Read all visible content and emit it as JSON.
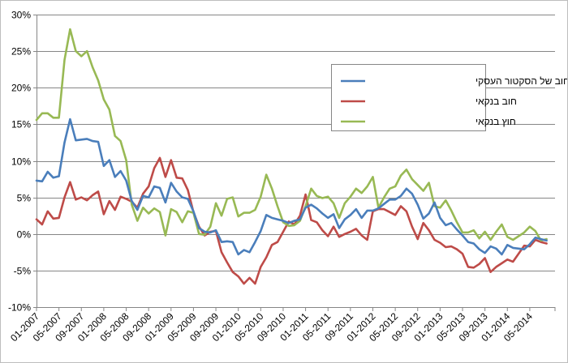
{
  "chart_data": {
    "type": "line",
    "title": "",
    "xlabel": "",
    "ylabel": "",
    "ylim": [
      -0.1,
      0.3
    ],
    "yticks": [
      -0.1,
      -0.05,
      0,
      0.05,
      0.1,
      0.15,
      0.2,
      0.25,
      0.3
    ],
    "ytick_labels": [
      "-10%",
      "-5%",
      "0%",
      "5%",
      "10%",
      "15%",
      "20%",
      "25%",
      "30%"
    ],
    "x_start": "01-2007",
    "x_labels": [
      "01-2007",
      "05-2007",
      "09-2007",
      "01-2008",
      "05-2008",
      "09-2008",
      "01-2009",
      "05-2009",
      "09-2009",
      "01-2010",
      "05-2010",
      "09-2010",
      "01-2011",
      "05-2011",
      "09-2011",
      "01-2012",
      "05-2012",
      "09-2012",
      "01-2013",
      "05-2013",
      "09-2013",
      "01-2014",
      "05-2014"
    ],
    "grid": "horizontal",
    "legend_position": "right",
    "colors": {
      "series1": "#4a7ebb",
      "series2": "#be4b48",
      "series3": "#98b954",
      "grid": "#868686"
    },
    "series": [
      {
        "name": "סך החוב של הסקטור העסקי",
        "values": [
          0.073,
          0.072,
          0.085,
          0.077,
          0.079,
          0.125,
          0.157,
          0.128,
          0.129,
          0.13,
          0.127,
          0.126,
          0.093,
          0.101,
          0.078,
          0.086,
          0.073,
          0.045,
          0.033,
          0.052,
          0.05,
          0.065,
          0.063,
          0.043,
          0.07,
          0.058,
          0.05,
          0.048,
          0.031,
          0.008,
          0.003,
          0.002,
          0.005,
          -0.011,
          -0.01,
          -0.011,
          -0.028,
          -0.022,
          -0.025,
          -0.011,
          0.004,
          0.026,
          0.022,
          0.02,
          0.018,
          0.015,
          0.018,
          0.02,
          0.036,
          0.04,
          0.035,
          0.028,
          0.022,
          0.027,
          0.008,
          0.02,
          0.026,
          0.034,
          0.022,
          0.032,
          0.032,
          0.035,
          0.041,
          0.047,
          0.047,
          0.052,
          0.062,
          0.055,
          0.04,
          0.021,
          0.028,
          0.043,
          0.022,
          0.012,
          0.015,
          0.006,
          -0.002,
          -0.011,
          -0.013,
          -0.021,
          -0.026,
          -0.017,
          -0.02,
          -0.028,
          -0.015,
          -0.019,
          -0.02,
          -0.021,
          -0.014,
          -0.005,
          -0.007,
          -0.009
        ]
      },
      {
        "name": "חוב בנקאי",
        "values": [
          0.02,
          0.013,
          0.031,
          0.021,
          0.022,
          0.05,
          0.071,
          0.047,
          0.05,
          0.046,
          0.053,
          0.058,
          0.027,
          0.045,
          0.033,
          0.051,
          0.048,
          0.044,
          0.036,
          0.055,
          0.065,
          0.09,
          0.104,
          0.078,
          0.101,
          0.077,
          0.076,
          0.06,
          0.03,
          0.01,
          -0.002,
          0.003,
          0.004,
          -0.025,
          -0.039,
          -0.052,
          -0.058,
          -0.068,
          -0.06,
          -0.068,
          -0.045,
          -0.032,
          -0.015,
          -0.011,
          0.003,
          0.017,
          0.013,
          0.025,
          0.054,
          0.019,
          0.016,
          0.005,
          -0.003,
          0.01,
          -0.004,
          0.0,
          0.003,
          0.007,
          -0.002,
          -0.008,
          0.031,
          0.034,
          0.034,
          0.03,
          0.026,
          0.038,
          0.031,
          0.01,
          -0.007,
          0.015,
          0.005,
          -0.008,
          -0.012,
          -0.018,
          -0.017,
          -0.021,
          -0.027,
          -0.045,
          -0.046,
          -0.041,
          -0.033,
          -0.052,
          -0.045,
          -0.04,
          -0.035,
          -0.038,
          -0.027,
          -0.016,
          -0.017,
          -0.008,
          -0.011,
          -0.013
        ]
      },
      {
        "name": "חוץ בנקאי",
        "values": [
          0.156,
          0.165,
          0.165,
          0.159,
          0.159,
          0.238,
          0.28,
          0.25,
          0.243,
          0.25,
          0.228,
          0.21,
          0.184,
          0.17,
          0.134,
          0.127,
          0.101,
          0.04,
          0.018,
          0.036,
          0.028,
          0.035,
          0.03,
          -0.002,
          0.034,
          0.03,
          0.016,
          0.031,
          0.029,
          0.0,
          -0.001,
          0.01,
          0.042,
          0.025,
          0.048,
          0.05,
          0.024,
          0.029,
          0.029,
          0.033,
          0.051,
          0.081,
          0.062,
          0.038,
          0.016,
          0.011,
          0.012,
          0.018,
          0.038,
          0.062,
          0.052,
          0.049,
          0.051,
          0.042,
          0.022,
          0.042,
          0.051,
          0.062,
          0.056,
          0.065,
          0.078,
          0.036,
          0.05,
          0.062,
          0.065,
          0.08,
          0.088,
          0.075,
          0.067,
          0.059,
          0.07,
          0.038,
          0.036,
          0.046,
          0.032,
          0.016,
          0.002,
          0.002,
          0.005,
          -0.006,
          0.003,
          -0.008,
          0.003,
          0.013,
          -0.004,
          -0.008,
          -0.003,
          0.002,
          0.01,
          0.004,
          -0.009,
          -0.007
        ]
      }
    ]
  }
}
